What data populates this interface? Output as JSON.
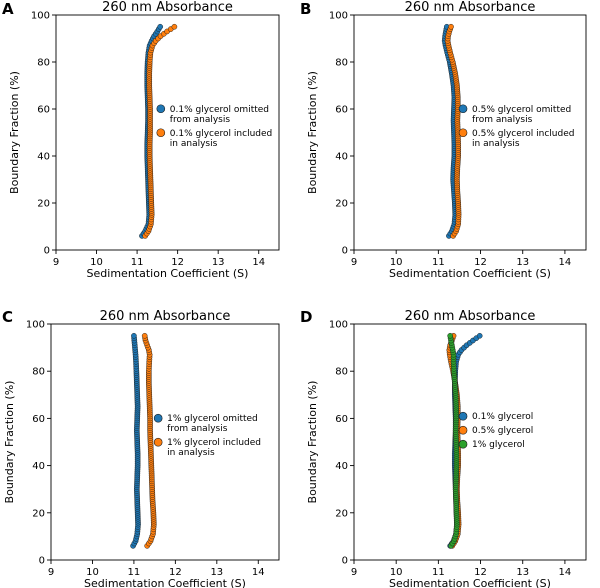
{
  "colors": {
    "blue": "#1f77b4",
    "orange": "#ff7f0e",
    "green": "#2ca02c"
  },
  "chart_data": [
    {
      "type": "scatter",
      "panel_label": "A",
      "title": "260 nm Absorbance",
      "xlabel": "Sedimentation Coefficient (S)",
      "ylabel": "Boundary Fraction (%)",
      "xlim": [
        9,
        14.5
      ],
      "ylim": [
        0,
        100
      ],
      "xticks": [
        9,
        10,
        11,
        12,
        13,
        14
      ],
      "yticks": [
        0,
        20,
        40,
        60,
        80,
        100
      ],
      "legend_position": "center-right",
      "series": [
        {
          "name": "0.1% glycerol omitted from analysis",
          "label_lines": [
            "0.1% glycerol omitted",
            "from analysis"
          ],
          "color": "blue",
          "x": [
            11.12,
            11.2,
            11.28,
            11.3,
            11.29,
            11.28,
            11.27,
            11.26,
            11.25,
            11.25,
            11.26,
            11.27,
            11.27,
            11.26,
            11.25,
            11.25,
            11.26,
            11.28,
            11.31,
            11.36,
            11.42,
            11.5,
            11.57
          ],
          "y": [
            6,
            8,
            11,
            15,
            20,
            25,
            30,
            35,
            40,
            45,
            50,
            55,
            60,
            65,
            70,
            75,
            80,
            84,
            87,
            89,
            91,
            93,
            95
          ]
        },
        {
          "name": "0.1% glycerol included in analysis",
          "label_lines": [
            "0.1% glycerol included",
            "in analysis"
          ],
          "color": "orange",
          "x": [
            11.2,
            11.28,
            11.34,
            11.36,
            11.35,
            11.34,
            11.33,
            11.32,
            11.31,
            11.31,
            11.32,
            11.32,
            11.32,
            11.31,
            11.3,
            11.3,
            11.31,
            11.33,
            11.38,
            11.46,
            11.58,
            11.74,
            11.92
          ],
          "y": [
            6,
            8,
            11,
            15,
            20,
            25,
            30,
            35,
            40,
            45,
            50,
            55,
            60,
            65,
            70,
            75,
            80,
            84,
            87,
            89,
            91,
            93,
            95
          ]
        }
      ]
    },
    {
      "type": "scatter",
      "panel_label": "B",
      "title": "260 nm Absorbance",
      "xlabel": "Sedimentation Coefficient (S)",
      "ylabel": "Boundary Fraction (%)",
      "xlim": [
        9,
        14.5
      ],
      "ylim": [
        0,
        100
      ],
      "xticks": [
        9,
        10,
        11,
        12,
        13,
        14
      ],
      "yticks": [
        0,
        20,
        40,
        60,
        80,
        100
      ],
      "legend_position": "center-right",
      "series": [
        {
          "name": "0.5% glycerol omitted from analysis",
          "label_lines": [
            "0.5% glycerol omitted",
            "from analysis"
          ],
          "color": "blue",
          "x": [
            11.25,
            11.32,
            11.38,
            11.4,
            11.39,
            11.37,
            11.35,
            11.36,
            11.38,
            11.38,
            11.37,
            11.36,
            11.37,
            11.38,
            11.36,
            11.32,
            11.27,
            11.21,
            11.17,
            11.15,
            11.16,
            11.18,
            11.2
          ],
          "y": [
            6,
            8,
            11,
            15,
            20,
            25,
            30,
            35,
            40,
            45,
            50,
            55,
            60,
            65,
            70,
            75,
            80,
            84,
            87,
            89,
            91,
            93,
            95
          ]
        },
        {
          "name": "0.5% glycerol included in analysis",
          "label_lines": [
            "0.5% glycerol included",
            "in analysis"
          ],
          "color": "orange",
          "x": [
            11.35,
            11.42,
            11.47,
            11.48,
            11.47,
            11.45,
            11.44,
            11.45,
            11.47,
            11.47,
            11.46,
            11.45,
            11.46,
            11.46,
            11.44,
            11.4,
            11.34,
            11.28,
            11.24,
            11.22,
            11.23,
            11.26,
            11.3
          ],
          "y": [
            6,
            8,
            11,
            15,
            20,
            25,
            30,
            35,
            40,
            45,
            50,
            55,
            60,
            65,
            70,
            75,
            80,
            84,
            87,
            89,
            91,
            93,
            95
          ]
        }
      ]
    },
    {
      "type": "scatter",
      "panel_label": "C",
      "title": "260 nm Absorbance",
      "xlabel": "Sedimentation Coefficient (S)",
      "ylabel": "Boundary Fraction (%)",
      "xlim": [
        9,
        14.5
      ],
      "ylim": [
        0,
        100
      ],
      "xticks": [
        9,
        10,
        11,
        12,
        13,
        14
      ],
      "yticks": [
        0,
        20,
        40,
        60,
        80,
        100
      ],
      "legend_position": "center-right",
      "series": [
        {
          "name": "1% glycerol omitted from analysis",
          "label_lines": [
            "1% glycerol omitted",
            "from analysis"
          ],
          "color": "blue",
          "x": [
            10.98,
            11.04,
            11.08,
            11.1,
            11.09,
            11.08,
            11.07,
            11.08,
            11.09,
            11.09,
            11.08,
            11.07,
            11.08,
            11.09,
            11.08,
            11.07,
            11.06,
            11.05,
            11.04,
            11.03,
            11.02,
            11.01,
            11.0
          ],
          "y": [
            6,
            8,
            11,
            15,
            20,
            25,
            30,
            35,
            40,
            45,
            50,
            55,
            60,
            65,
            70,
            75,
            80,
            84,
            87,
            89,
            91,
            93,
            95
          ]
        },
        {
          "name": "1% glycerol included in analysis",
          "label_lines": [
            "1% glycerol included",
            "in analysis"
          ],
          "color": "orange",
          "x": [
            11.32,
            11.4,
            11.46,
            11.48,
            11.47,
            11.45,
            11.44,
            11.43,
            11.42,
            11.41,
            11.4,
            11.39,
            11.39,
            11.38,
            11.37,
            11.36,
            11.36,
            11.37,
            11.38,
            11.36,
            11.32,
            11.28,
            11.26
          ],
          "y": [
            6,
            8,
            11,
            15,
            20,
            25,
            30,
            35,
            40,
            45,
            50,
            55,
            60,
            65,
            70,
            75,
            80,
            84,
            87,
            89,
            91,
            93,
            95
          ]
        }
      ]
    },
    {
      "type": "scatter",
      "panel_label": "D",
      "title": "260 nm Absorbance",
      "xlabel": "Sedimentation Coefficient (S)",
      "ylabel": "Boundary Fraction (%)",
      "xlim": [
        9,
        14.5
      ],
      "ylim": [
        0,
        100
      ],
      "xticks": [
        9,
        10,
        11,
        12,
        13,
        14
      ],
      "yticks": [
        0,
        20,
        40,
        60,
        80,
        100
      ],
      "legend_position": "center-right",
      "series": [
        {
          "name": "0.1% glycerol",
          "label_lines": [
            "0.1% glycerol"
          ],
          "color": "blue",
          "x": [
            11.28,
            11.36,
            11.42,
            11.44,
            11.43,
            11.42,
            11.41,
            11.4,
            11.39,
            11.39,
            11.4,
            11.41,
            11.41,
            11.4,
            11.39,
            11.39,
            11.4,
            11.42,
            11.47,
            11.55,
            11.67,
            11.82,
            11.98
          ],
          "y": [
            6,
            8,
            11,
            15,
            20,
            25,
            30,
            35,
            40,
            45,
            50,
            55,
            60,
            65,
            70,
            75,
            80,
            84,
            87,
            89,
            91,
            93,
            95
          ]
        },
        {
          "name": "0.5% glycerol",
          "label_lines": [
            "0.5% glycerol"
          ],
          "color": "orange",
          "x": [
            11.33,
            11.4,
            11.46,
            11.48,
            11.47,
            11.45,
            11.44,
            11.45,
            11.47,
            11.47,
            11.46,
            11.45,
            11.46,
            11.46,
            11.44,
            11.4,
            11.35,
            11.3,
            11.27,
            11.26,
            11.28,
            11.32,
            11.36
          ],
          "y": [
            6,
            8,
            11,
            15,
            20,
            25,
            30,
            35,
            40,
            45,
            50,
            55,
            60,
            65,
            70,
            75,
            80,
            84,
            87,
            89,
            91,
            93,
            95
          ]
        },
        {
          "name": "1% glycerol",
          "label_lines": [
            "1% glycerol"
          ],
          "color": "green",
          "x": [
            11.3,
            11.37,
            11.42,
            11.44,
            11.43,
            11.42,
            11.41,
            11.42,
            11.43,
            11.43,
            11.42,
            11.41,
            11.42,
            11.42,
            11.41,
            11.39,
            11.37,
            11.36,
            11.36,
            11.34,
            11.32,
            11.3,
            11.28
          ],
          "y": [
            6,
            8,
            11,
            15,
            20,
            25,
            30,
            35,
            40,
            45,
            50,
            55,
            60,
            65,
            70,
            75,
            80,
            84,
            87,
            89,
            91,
            93,
            95
          ]
        }
      ]
    }
  ]
}
